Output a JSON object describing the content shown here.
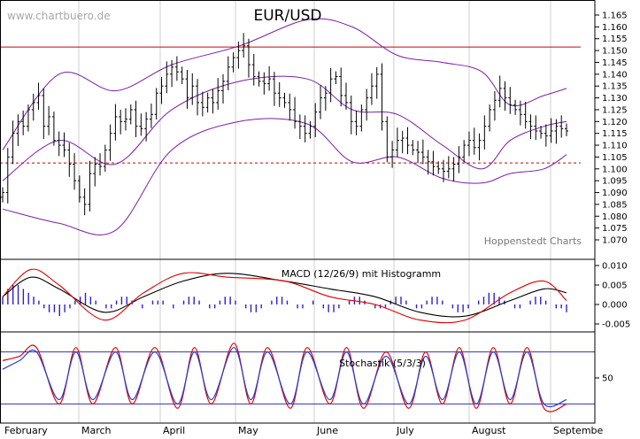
{
  "chart_data": [
    {
      "type": "candlestick",
      "title": "EUR/USD",
      "watermark": "www.chartbuero.de",
      "credit": "Hoppenstedt Charts",
      "ylim": [
        1.066,
        1.169
      ],
      "yticks": [
        "1.165",
        "1.160",
        "1.155",
        "1.150",
        "1.145",
        "1.140",
        "1.135",
        "1.130",
        "1.125",
        "1.120",
        "1.115",
        "1.110",
        "1.105",
        "1.100",
        "1.095",
        "1.090",
        "1.085",
        "1.080",
        "1.075",
        "1.070"
      ],
      "months": [
        "February",
        "March",
        "April",
        "May",
        "June",
        "July",
        "August",
        "Septembe"
      ],
      "reference_lines": [
        {
          "value": 1.1515,
          "style": "solid",
          "color": "#cc0000"
        },
        {
          "value": 1.1025,
          "style": "dashed",
          "color": "#cc0000"
        }
      ],
      "bollinger_color": "#7a1fa8",
      "overlays": [
        {
          "name": "upper",
          "x": [
            0,
            10,
            20,
            30,
            42,
            54,
            62,
            70,
            78,
            85,
            90,
            96,
            100
          ],
          "y": [
            1.108,
            1.14,
            1.133,
            1.144,
            1.152,
            1.163,
            1.16,
            1.148,
            1.145,
            1.141,
            1.127,
            1.131,
            1.134
          ]
        },
        {
          "name": "middle",
          "x": [
            0,
            10,
            20,
            30,
            42,
            54,
            62,
            70,
            78,
            85,
            90,
            96,
            100
          ],
          "y": [
            1.095,
            1.112,
            1.102,
            1.125,
            1.137,
            1.138,
            1.125,
            1.123,
            1.11,
            1.1,
            1.112,
            1.118,
            1.12
          ]
        },
        {
          "name": "lower",
          "x": [
            0,
            10,
            20,
            30,
            42,
            54,
            62,
            70,
            78,
            85,
            90,
            96,
            100
          ],
          "y": [
            1.083,
            1.077,
            1.074,
            1.108,
            1.12,
            1.119,
            1.103,
            1.105,
            1.096,
            1.094,
            1.098,
            1.1,
            1.106
          ]
        }
      ],
      "close": [
        1.09,
        1.105,
        1.115,
        1.12,
        1.118,
        1.125,
        1.128,
        1.131,
        1.118,
        1.122,
        1.112,
        1.11,
        1.108,
        1.102,
        1.095,
        1.088,
        1.085,
        1.098,
        1.102,
        1.101,
        1.108,
        1.115,
        1.122,
        1.12,
        1.121,
        1.125,
        1.118,
        1.117,
        1.121,
        1.123,
        1.132,
        1.135,
        1.14,
        1.143,
        1.141,
        1.138,
        1.13,
        1.135,
        1.128,
        1.126,
        1.13,
        1.128,
        1.133,
        1.137,
        1.143,
        1.147,
        1.15,
        1.152,
        1.144,
        1.139,
        1.137,
        1.136,
        1.138,
        1.132,
        1.13,
        1.128,
        1.125,
        1.12,
        1.118,
        1.115,
        1.118,
        1.124,
        1.13,
        1.132,
        1.138,
        1.139,
        1.131,
        1.128,
        1.12,
        1.118,
        1.125,
        1.13,
        1.135,
        1.14,
        1.12,
        1.105,
        1.108,
        1.112,
        1.113,
        1.11,
        1.108,
        1.107,
        1.105,
        1.103,
        1.101,
        1.1,
        1.099,
        1.1,
        1.102,
        1.105,
        1.11,
        1.112,
        1.109,
        1.112,
        1.118,
        1.125,
        1.129,
        1.134,
        1.13,
        1.127,
        1.125,
        1.123,
        1.12,
        1.118,
        1.116,
        1.115,
        1.114,
        1.116,
        1.118,
        1.117,
        1.116
      ],
      "panels": [
        {
          "title": "MACD (12/26/9) mit Histogramm",
          "ylim": [
            -0.0065,
            0.0115
          ],
          "yticks": [
            "0.010",
            "0.005",
            "0.000",
            "-0.005"
          ],
          "series": [
            {
              "color": "#000000",
              "x": [
                0,
                5,
                10,
                18,
                25,
                32,
                40,
                50,
                58,
                66,
                74,
                82,
                90,
                96,
                100
              ],
              "y": [
                0.002,
                0.007,
                0.004,
                -0.002,
                0.002,
                0.006,
                0.008,
                0.006,
                0.004,
                0.002,
                -0.002,
                -0.003,
                0.001,
                0.004,
                0.003
              ]
            },
            {
              "color": "#dd0000",
              "x": [
                0,
                5,
                10,
                18,
                25,
                32,
                40,
                50,
                58,
                66,
                74,
                82,
                90,
                96,
                100
              ],
              "y": [
                0.002,
                0.009,
                0.005,
                -0.004,
                0.003,
                0.008,
                0.007,
                0.006,
                0.002,
                0.0,
                -0.004,
                -0.004,
                0.003,
                0.006,
                0.001
              ]
            }
          ],
          "histogram_color": "#2f1fd0",
          "histogram": [
            0.002,
            0.004,
            0.005,
            0.005,
            0.004,
            0.003,
            0.002,
            0.001,
            -0.001,
            -0.002,
            -0.002,
            -0.003,
            -0.002,
            -0.001,
            0.001,
            0.002,
            0.003,
            0.002,
            0.001,
            0.0,
            -0.001,
            -0.001,
            0.001,
            0.002,
            0.002,
            0.001,
            0.0,
            -0.001,
            0.0,
            0.001,
            0.001,
            0.001,
            0.0,
            -0.001,
            0.0,
            0.001,
            0.002,
            0.002,
            0.001,
            0.0,
            -0.001,
            -0.001,
            0.001,
            0.002,
            0.002,
            0.001,
            0.0,
            -0.001,
            -0.002,
            -0.002,
            -0.001,
            0.0,
            0.001,
            0.002,
            0.002,
            0.001,
            0.0,
            -0.001,
            -0.001,
            0.0,
            0.001,
            0.0,
            -0.001,
            -0.002,
            -0.002,
            -0.001,
            0.0,
            0.001,
            0.002,
            0.002,
            0.001,
            0.0,
            -0.001,
            -0.001,
            -0.001,
            0.001,
            0.002,
            0.002,
            0.001,
            0.0,
            -0.001,
            -0.001,
            0.001,
            0.002,
            0.002,
            0.001,
            0.0,
            -0.001,
            -0.002,
            -0.002,
            -0.001,
            0.0,
            0.001,
            0.002,
            0.003,
            0.003,
            0.002,
            0.001,
            0.0,
            -0.001,
            -0.001,
            0.0,
            0.001,
            0.002,
            0.002,
            0.001,
            0.0,
            -0.001,
            -0.001,
            -0.002
          ]
        },
        {
          "title": "Stochastik (5/3/3)",
          "ylim": [
            0,
            100
          ],
          "yticks": [
            "50"
          ],
          "levels": [
            80,
            20
          ],
          "level_color": "#3030c0",
          "series": [
            {
              "color": "#dd0000",
              "x": [
                0,
                3,
                6,
                10,
                13,
                16,
                20,
                23,
                27,
                31,
                34,
                37,
                41,
                44,
                47,
                51,
                54,
                58,
                61,
                64,
                68,
                72,
                75,
                78,
                81,
                84,
                87,
                90,
                93,
                96,
                100
              ],
              "y": [
                70,
                75,
                85,
                20,
                85,
                20,
                85,
                20,
                85,
                15,
                85,
                20,
                90,
                20,
                85,
                15,
                85,
                20,
                85,
                15,
                80,
                15,
                80,
                20,
                85,
                15,
                85,
                20,
                85,
                15,
                20
              ]
            },
            {
              "color": "#2040d0",
              "x": [
                0,
                3,
                6,
                10,
                13,
                16,
                20,
                23,
                27,
                31,
                34,
                37,
                41,
                44,
                47,
                51,
                54,
                58,
                61,
                64,
                68,
                72,
                75,
                78,
                81,
                84,
                87,
                90,
                93,
                96,
                100
              ],
              "y": [
                60,
                70,
                80,
                25,
                80,
                25,
                80,
                25,
                80,
                20,
                80,
                25,
                85,
                25,
                80,
                20,
                80,
                25,
                80,
                20,
                75,
                20,
                75,
                25,
                80,
                20,
                80,
                25,
                80,
                20,
                25
              ]
            }
          ]
        }
      ]
    }
  ]
}
